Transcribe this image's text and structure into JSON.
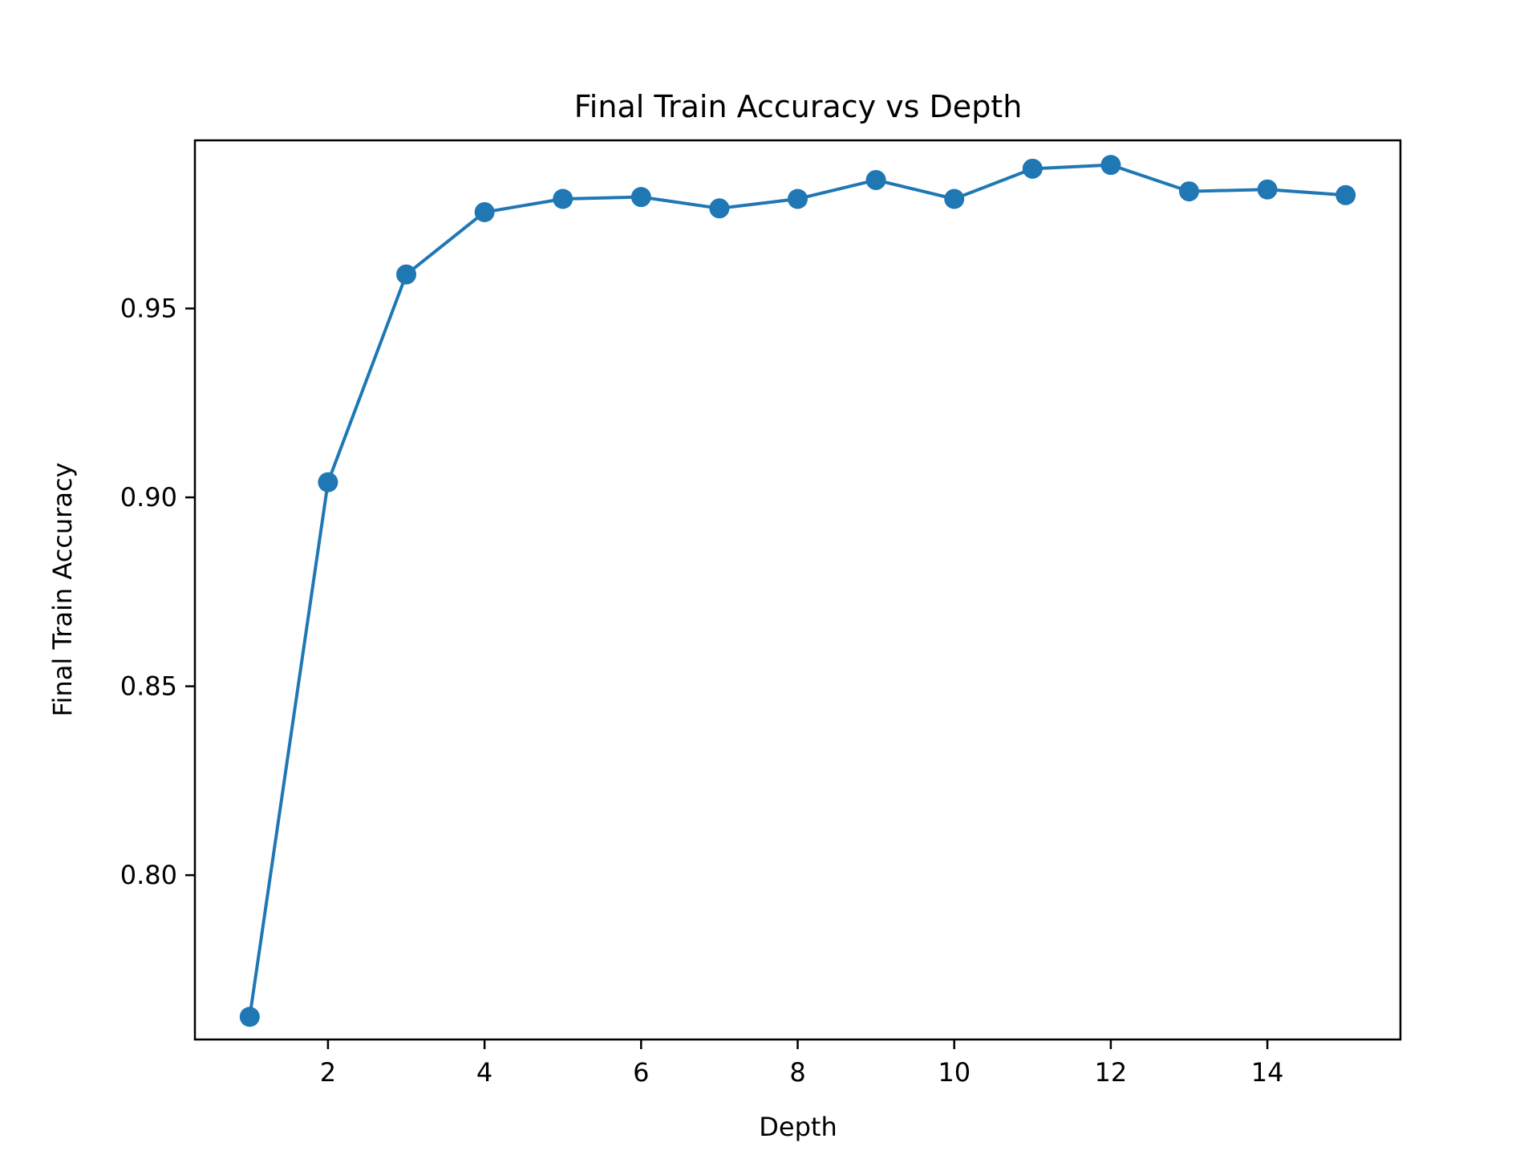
{
  "chart_data": {
    "type": "line",
    "title": "Final Train Accuracy vs Depth",
    "xlabel": "Depth",
    "ylabel": "Final Train Accuracy",
    "xlim": [
      0.3,
      15.7
    ],
    "ylim": [
      0.7565,
      0.9945
    ],
    "xticks": [
      2,
      4,
      6,
      8,
      10,
      12,
      14
    ],
    "xtick_labels": [
      "2",
      "4",
      "6",
      "8",
      "10",
      "12",
      14
    ],
    "yticks": [
      0.8,
      0.85,
      0.9,
      0.95
    ],
    "ytick_labels": [
      "0.80",
      "0.85",
      "0.90",
      "0.95"
    ],
    "grid": false,
    "legend": false,
    "series_color": "#1f77b4",
    "series": [
      {
        "x": [
          1,
          2,
          3,
          4,
          5,
          6,
          7,
          8,
          9,
          10,
          11,
          12,
          13,
          14,
          15
        ],
        "y": [
          0.7625,
          0.904,
          0.959,
          0.9755,
          0.979,
          0.9795,
          0.9765,
          0.979,
          0.984,
          0.979,
          0.987,
          0.988,
          0.981,
          0.9815,
          0.98
        ]
      }
    ]
  }
}
